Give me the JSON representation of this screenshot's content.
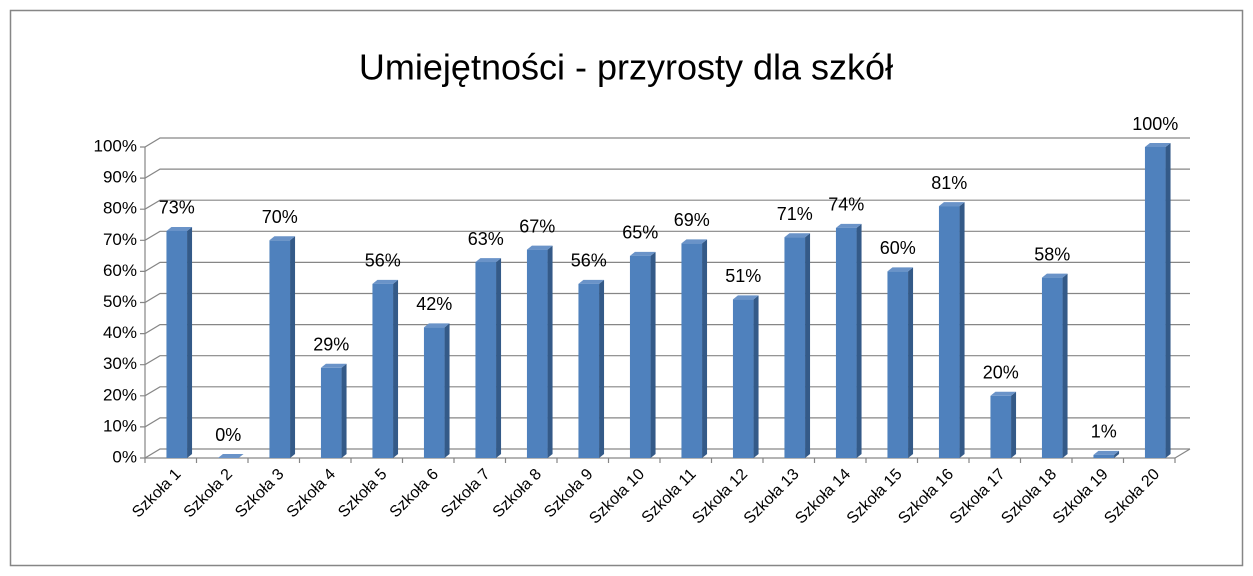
{
  "chart_data": {
    "type": "bar",
    "title": "Umiejętności - przyrosty dla szkół",
    "categories": [
      "Szkoła 1",
      "Szkoła 2",
      "Szkoła 3",
      "Szkoła 4",
      "Szkoła 5",
      "Szkoła 6",
      "Szkoła 7",
      "Szkoła 8",
      "Szkoła 9",
      "Szkoła 10",
      "Szkoła 11",
      "Szkoła 12",
      "Szkoła 13",
      "Szkoła 14",
      "Szkoła 15",
      "Szkoła 16",
      "Szkoła 17",
      "Szkoła 18",
      "Szkoła 19",
      "Szkoła 20"
    ],
    "values": [
      73,
      0,
      70,
      29,
      56,
      42,
      63,
      67,
      56,
      65,
      69,
      51,
      71,
      74,
      60,
      81,
      20,
      58,
      1,
      100
    ],
    "value_labels": [
      "73%",
      "0%",
      "70%",
      "29%",
      "56%",
      "42%",
      "63%",
      "67%",
      "56%",
      "65%",
      "69%",
      "51%",
      "71%",
      "74%",
      "60%",
      "81%",
      "20%",
      "58%",
      "1%",
      "100%"
    ],
    "color": "#4f81bd",
    "ylim": [
      0,
      100
    ],
    "yticks": [
      {
        "value": 0,
        "label": "0%"
      },
      {
        "value": 10,
        "label": "10%"
      },
      {
        "value": 20,
        "label": "20%"
      },
      {
        "value": 30,
        "label": "30%"
      },
      {
        "value": 40,
        "label": "40%"
      },
      {
        "value": 50,
        "label": "50%"
      },
      {
        "value": 60,
        "label": "60%"
      },
      {
        "value": 70,
        "label": "70%"
      },
      {
        "value": 80,
        "label": "80%"
      },
      {
        "value": 90,
        "label": "90%"
      },
      {
        "value": 100,
        "label": "100%"
      }
    ],
    "grid": true
  }
}
